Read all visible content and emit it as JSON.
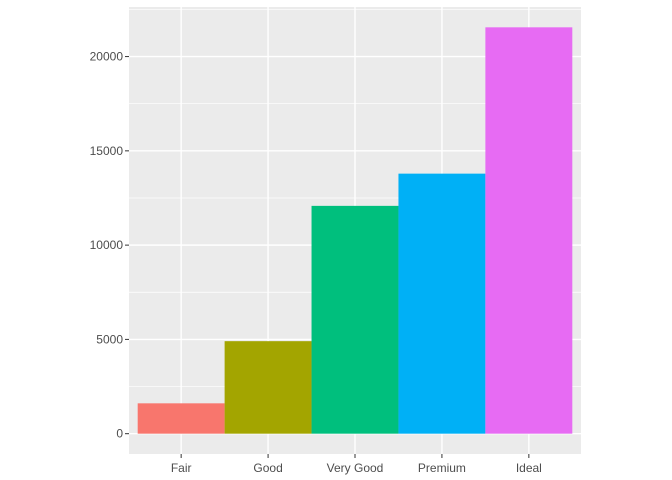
{
  "chart_data": {
    "type": "bar",
    "categories": [
      "Fair",
      "Good",
      "Very Good",
      "Premium",
      "Ideal"
    ],
    "values": [
      1610,
      4906,
      12082,
      13791,
      21551
    ],
    "colors": [
      "#F8766D",
      "#A3A500",
      "#00BF7D",
      "#00B0F6",
      "#E76BF3"
    ],
    "title": "",
    "xlabel": "",
    "ylabel": "",
    "ylim": [
      -1077.55,
      22628.55
    ],
    "yticks": [
      0,
      5000,
      10000,
      15000,
      20000
    ],
    "ytick_labels": [
      "0",
      "5000",
      "10000",
      "15000",
      "20000"
    ],
    "panel_background": "#EBEBEB",
    "grid": true,
    "legend": "none"
  }
}
